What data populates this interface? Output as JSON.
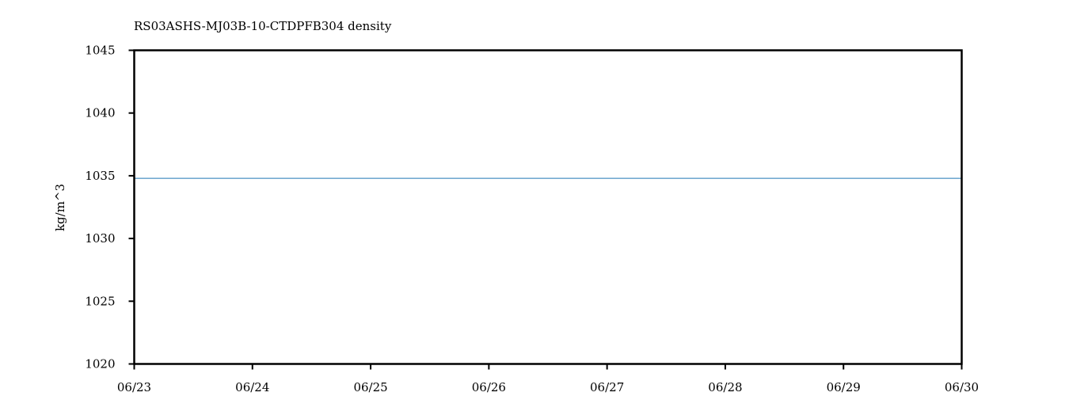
{
  "chart_data": {
    "type": "line",
    "title": "RS03ASHS-MJ03B-10-CTDPFB304 density",
    "xlabel": "",
    "ylabel": "kg/m^3",
    "xlim": [
      "06/23",
      "06/30"
    ],
    "ylim": [
      1020,
      1045
    ],
    "x_ticks": [
      "06/23",
      "06/24",
      "06/25",
      "06/26",
      "06/27",
      "06/28",
      "06/29",
      "06/30"
    ],
    "y_ticks": [
      1020,
      1025,
      1030,
      1035,
      1040,
      1045
    ],
    "grid": false,
    "series_color": "#1f77b4",
    "series": [
      {
        "x": [
          "06/23",
          "06/24",
          "06/25",
          "06/26",
          "06/27",
          "06/28",
          "06/29",
          "06/30"
        ],
        "values": [
          1034.8,
          1034.8,
          1034.8,
          1034.8,
          1034.8,
          1034.8,
          1034.8,
          1034.8
        ]
      }
    ]
  }
}
